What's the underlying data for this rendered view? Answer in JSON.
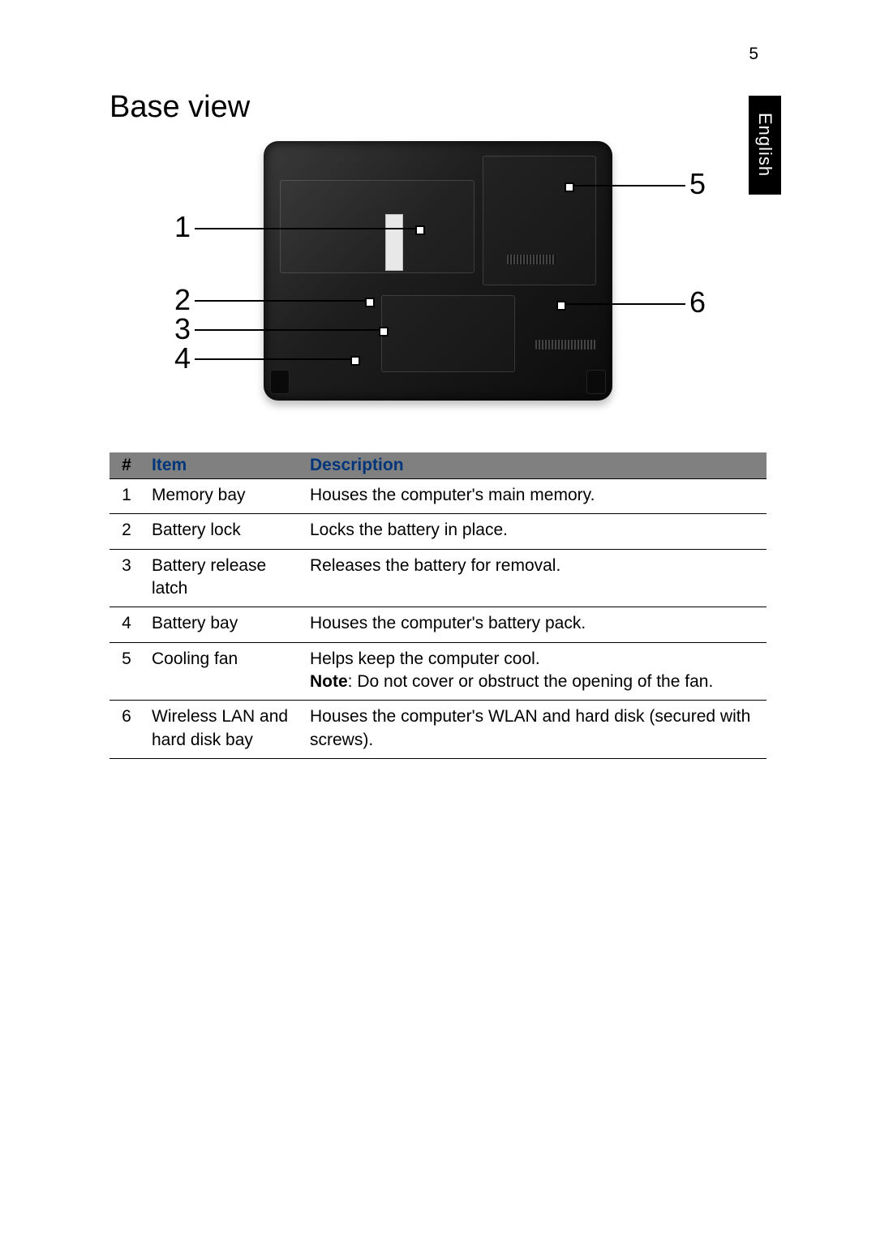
{
  "page": {
    "number": "5",
    "language_tab": "English",
    "section_title": "Base view"
  },
  "diagram": {
    "callouts_left": [
      "1",
      "2",
      "3",
      "4"
    ],
    "callouts_right": [
      "5",
      "6"
    ]
  },
  "table": {
    "headers": {
      "num": "#",
      "item": "Item",
      "desc": "Description"
    },
    "header_text_color": "#00357a",
    "header_bg_color": "#808080",
    "rows": [
      {
        "num": "1",
        "item": "Memory bay",
        "desc": "Houses the computer's main memory."
      },
      {
        "num": "2",
        "item": "Battery lock",
        "desc": "Locks the battery in place."
      },
      {
        "num": "3",
        "item": "Battery release latch",
        "desc": "Releases the battery for removal."
      },
      {
        "num": "4",
        "item": "Battery bay",
        "desc": "Houses the computer's battery pack."
      },
      {
        "num": "5",
        "item": "Cooling fan",
        "desc_pre": "Helps keep the computer cool.",
        "note_label": "Note",
        "note_text": ": Do not cover or obstruct the opening of the fan."
      },
      {
        "num": "6",
        "item": "Wireless LAN and hard disk bay",
        "desc": "Houses the computer's WLAN and hard disk (secured with screws)."
      }
    ]
  }
}
